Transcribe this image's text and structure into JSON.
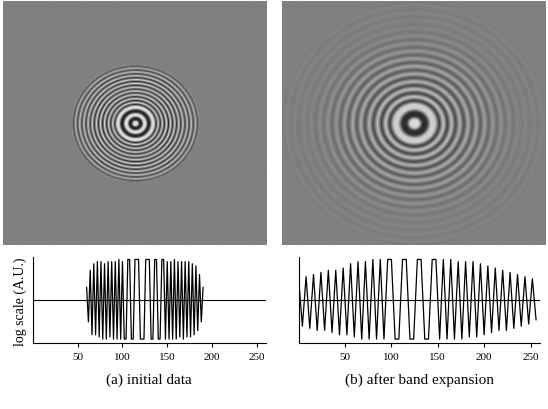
{
  "chart_data": [
    {
      "type": "line",
      "xlabel": "(a) initial data",
      "ylabel": "log scale (A.U.)",
      "color": "#000000",
      "tick_labels": "x",
      "xlim": [
        0,
        260
      ],
      "xticks": [
        50,
        100,
        150,
        200,
        250
      ],
      "ylim": [
        -1,
        1
      ],
      "x": [
        60,
        62,
        64,
        66,
        68,
        70,
        72,
        74,
        76,
        78,
        80,
        82,
        84,
        86,
        88,
        90,
        92,
        94,
        96,
        98,
        100,
        102,
        104,
        106,
        108,
        110,
        112,
        114,
        116,
        118,
        120,
        122,
        124,
        126,
        128,
        130,
        132,
        134,
        136,
        138,
        140,
        142,
        144,
        146,
        148,
        150,
        152,
        154,
        156,
        158,
        160,
        162,
        164,
        166,
        168,
        170,
        172,
        174,
        176,
        178,
        180,
        182,
        184,
        186,
        188,
        190
      ],
      "values": [
        0.3,
        -0.5,
        0.7,
        -0.8,
        0.85,
        -0.8,
        0.9,
        -0.85,
        0.9,
        -0.9,
        0.85,
        -0.9,
        0.9,
        -0.85,
        0.9,
        -0.9,
        0.9,
        -0.9,
        0.95,
        -0.9,
        0.9,
        -0.9,
        -0.9,
        0.95,
        0.95,
        -0.9,
        -0.9,
        0.95,
        0.95,
        0.95,
        -0.9,
        -0.9,
        -0.9,
        0.95,
        0.95,
        0.95,
        -0.9,
        -0.9,
        0.95,
        0.95,
        -0.9,
        -0.9,
        0.95,
        0.95,
        -0.9,
        0.9,
        -0.9,
        0.9,
        -0.9,
        0.95,
        -0.9,
        0.9,
        -0.85,
        0.9,
        -0.9,
        0.9,
        -0.85,
        0.9,
        -0.85,
        0.85,
        -0.8,
        0.8,
        -0.7,
        0.6,
        -0.5,
        0.3
      ]
    },
    {
      "type": "line",
      "xlabel": "(b) after band expansion",
      "color": "#000000",
      "tick_labels": "x",
      "xlim": [
        0,
        260
      ],
      "xticks": [
        50,
        100,
        150,
        200,
        250
      ],
      "ylim": [
        -1,
        1
      ],
      "x": [
        0,
        4,
        8,
        12,
        16,
        20,
        24,
        28,
        32,
        36,
        40,
        44,
        48,
        52,
        56,
        60,
        64,
        68,
        72,
        76,
        80,
        84,
        88,
        92,
        96,
        100,
        104,
        108,
        112,
        116,
        120,
        124,
        128,
        132,
        136,
        140,
        144,
        148,
        152,
        156,
        160,
        164,
        168,
        172,
        176,
        180,
        184,
        188,
        192,
        196,
        200,
        204,
        208,
        212,
        216,
        220,
        224,
        228,
        232,
        236,
        240,
        244,
        248,
        252,
        256
      ],
      "values": [
        0.5,
        -0.6,
        0.55,
        -0.65,
        0.6,
        -0.7,
        0.65,
        -0.7,
        0.7,
        -0.75,
        0.7,
        -0.8,
        0.75,
        -0.8,
        0.85,
        -0.85,
        0.9,
        -0.9,
        0.9,
        -0.9,
        0.95,
        -0.9,
        0.95,
        -0.9,
        0.95,
        0.95,
        -0.9,
        -0.9,
        0.95,
        0.95,
        -0.9,
        -0.9,
        0.95,
        0.95,
        -0.9,
        -0.9,
        0.95,
        0.95,
        -0.9,
        0.95,
        -0.9,
        0.95,
        -0.9,
        0.9,
        -0.9,
        0.9,
        -0.85,
        0.9,
        -0.85,
        0.85,
        -0.8,
        0.8,
        -0.75,
        0.75,
        -0.7,
        0.7,
        -0.7,
        0.65,
        -0.65,
        0.6,
        -0.6,
        0.55,
        -0.55,
        0.5,
        -0.45
      ]
    }
  ]
}
